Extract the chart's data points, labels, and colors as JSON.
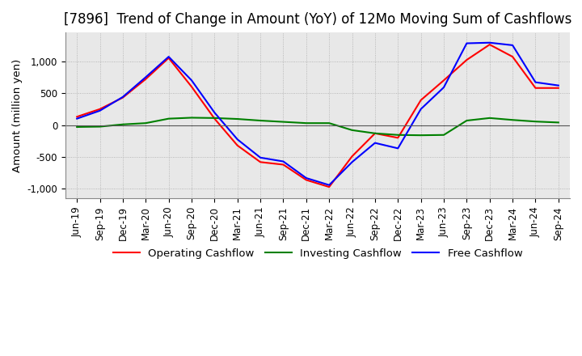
{
  "title": "[7896]  Trend of Change in Amount (YoY) of 12Mo Moving Sum of Cashflows",
  "ylabel": "Amount (million yen)",
  "ylim": [
    -1150,
    1450
  ],
  "yticks": [
    -1000,
    -500,
    0,
    500,
    1000
  ],
  "x_labels": [
    "Jun-19",
    "Sep-19",
    "Dec-19",
    "Mar-20",
    "Jun-20",
    "Sep-20",
    "Dec-20",
    "Mar-21",
    "Jun-21",
    "Sep-21",
    "Dec-21",
    "Mar-22",
    "Jun-22",
    "Sep-22",
    "Dec-22",
    "Mar-23",
    "Jun-23",
    "Sep-23",
    "Dec-23",
    "Mar-24",
    "Jun-24",
    "Sep-24"
  ],
  "operating_cashflow": [
    130,
    250,
    430,
    720,
    1050,
    600,
    100,
    -320,
    -580,
    -620,
    -860,
    -970,
    -490,
    -130,
    -200,
    390,
    700,
    1020,
    1260,
    1070,
    580,
    580
  ],
  "investing_cashflow": [
    -30,
    -25,
    10,
    30,
    100,
    115,
    110,
    95,
    70,
    50,
    30,
    30,
    -80,
    -130,
    -155,
    -160,
    -155,
    70,
    110,
    80,
    55,
    40
  ],
  "free_cashflow": [
    100,
    225,
    440,
    750,
    1070,
    700,
    195,
    -225,
    -510,
    -570,
    -830,
    -940,
    -580,
    -280,
    -365,
    250,
    590,
    1280,
    1290,
    1250,
    670,
    620
  ],
  "colors": {
    "operating": "#ff0000",
    "investing": "#008000",
    "free": "#0000ff"
  },
  "legend_labels": [
    "Operating Cashflow",
    "Investing Cashflow",
    "Free Cashflow"
  ],
  "background_color": "#ffffff",
  "grid_color": "#aaaaaa",
  "title_fontsize": 12,
  "label_fontsize": 9.5,
  "tick_fontsize": 8.5
}
